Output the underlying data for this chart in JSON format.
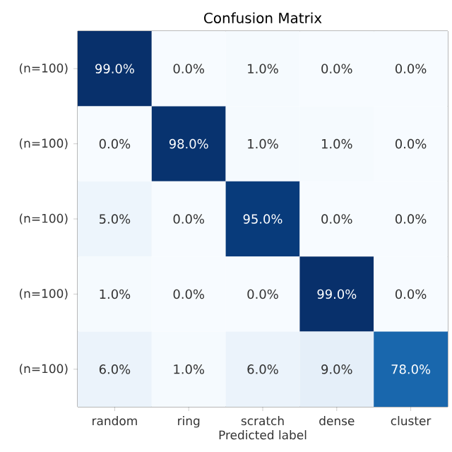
{
  "chart_data": {
    "type": "heatmap",
    "title": "Confusion Matrix",
    "xlabel": "Predicted label",
    "categories": [
      "random",
      "ring",
      "scratch",
      "dense",
      "cluster"
    ],
    "y_categories": [
      "(n=100)",
      "(n=100)",
      "(n=100)",
      "(n=100)",
      "(n=100)"
    ],
    "cells": [
      [
        99.0,
        0.0,
        1.0,
        0.0,
        0.0
      ],
      [
        0.0,
        98.0,
        1.0,
        1.0,
        0.0
      ],
      [
        5.0,
        0.0,
        95.0,
        0.0,
        0.0
      ],
      [
        1.0,
        0.0,
        0.0,
        99.0,
        0.0
      ],
      [
        6.0,
        1.0,
        6.0,
        9.0,
        78.0
      ]
    ],
    "cell_labels": [
      [
        "99.0%",
        "0.0%",
        "1.0%",
        "0.0%",
        "0.0%"
      ],
      [
        "0.0%",
        "98.0%",
        "1.0%",
        "1.0%",
        "0.0%"
      ],
      [
        "5.0%",
        "0.0%",
        "95.0%",
        "0.0%",
        "0.0%"
      ],
      [
        "1.0%",
        "0.0%",
        "0.0%",
        "99.0%",
        "0.0%"
      ],
      [
        "6.0%",
        "1.0%",
        "6.0%",
        "9.0%",
        "78.0%"
      ]
    ]
  }
}
